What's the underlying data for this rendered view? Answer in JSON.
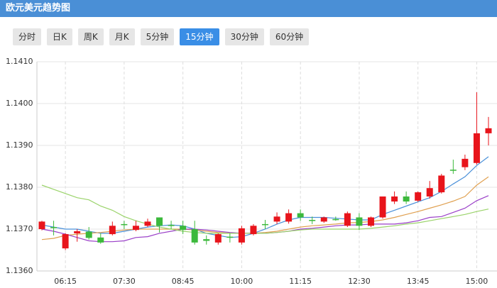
{
  "header": {
    "title": "欧元美元趋势图"
  },
  "tabs": [
    "分时",
    "日K",
    "周K",
    "月K",
    "5分钟",
    "15分钟",
    "30分钟",
    "60分钟"
  ],
  "active_tab": 5,
  "chart_data": {
    "type": "candlestick",
    "categories": [
      null,
      null,
      "06:15",
      null,
      null,
      null,
      null,
      "07:30",
      null,
      null,
      null,
      null,
      "08:45",
      null,
      null,
      null,
      null,
      "10:00",
      null,
      null,
      null,
      null,
      "11:15",
      null,
      null,
      null,
      null,
      "12:30",
      null,
      null,
      null,
      null,
      "13:45",
      null,
      null,
      null,
      null,
      "15:00",
      null
    ],
    "open": [
      1.137,
      1.13705,
      1.13654,
      1.1369,
      1.13694,
      1.1368,
      1.13688,
      1.13712,
      1.13698,
      1.13708,
      1.13728,
      1.1371,
      1.13708,
      1.137,
      1.13676,
      1.13668,
      1.13682,
      1.13668,
      1.13688,
      1.13712,
      1.13718,
      1.13718,
      1.13738,
      1.13722,
      1.13718,
      1.13724,
      1.13708,
      1.13728,
      1.13708,
      1.13728,
      1.13766,
      1.13778,
      1.13768,
      1.13778,
      1.13788,
      1.13842,
      1.13848,
      1.13858,
      1.13929
    ],
    "high": [
      1.1372,
      1.1372,
      1.1369,
      1.137,
      1.13705,
      1.1369,
      1.13718,
      1.1372,
      1.1372,
      1.13725,
      1.13728,
      1.1372,
      1.1372,
      1.1372,
      1.13685,
      1.1369,
      1.1369,
      1.13708,
      1.13712,
      1.13722,
      1.1374,
      1.13747,
      1.13747,
      1.1373,
      1.1373,
      1.1373,
      1.13742,
      1.13738,
      1.1373,
      1.13778,
      1.1379,
      1.1379,
      1.1379,
      1.13815,
      1.13832,
      1.13866,
      1.13878,
      1.14027,
      1.13968
    ],
    "low": [
      1.13697,
      1.13685,
      1.1365,
      1.1367,
      1.13675,
      1.13665,
      1.13685,
      1.137,
      1.13695,
      1.13705,
      1.13692,
      1.137,
      1.13688,
      1.13663,
      1.13663,
      1.13663,
      1.13668,
      1.13663,
      1.13685,
      1.137,
      1.13712,
      1.13713,
      1.1372,
      1.13712,
      1.13715,
      1.1372,
      1.13705,
      1.13698,
      1.13705,
      1.13725,
      1.1376,
      1.1376,
      1.13765,
      1.13773,
      1.13785,
      1.13832,
      1.13841,
      1.13854,
      1.139
    ],
    "close": [
      1.13718,
      1.13703,
      1.13688,
      1.13695,
      1.13679,
      1.13668,
      1.13708,
      1.1371,
      1.13708,
      1.13718,
      1.13708,
      1.13708,
      1.13698,
      1.13668,
      1.13672,
      1.13688,
      1.1368,
      1.13702,
      1.13708,
      1.1371,
      1.1373,
      1.13738,
      1.13728,
      1.1372,
      1.13728,
      1.13722,
      1.13738,
      1.13708,
      1.13728,
      1.13778,
      1.13778,
      1.13766,
      1.13788,
      1.13798,
      1.13828,
      1.1384,
      1.13868,
      1.13929,
      1.13941
    ],
    "up_color": "#e8141b",
    "down_color": "#3cb93c",
    "series": [
      {
        "color": "#4a90d9",
        "values": [
          1.1371,
          1.13705,
          1.137,
          1.137,
          1.13695,
          1.1369,
          1.1369,
          1.13695,
          1.137,
          1.13705,
          1.13708,
          1.1371,
          1.13708,
          1.137,
          1.1369,
          1.13685,
          1.1368,
          1.13682,
          1.1369,
          1.137,
          1.13712,
          1.13722,
          1.13728,
          1.13728,
          1.13728,
          1.13726,
          1.13724,
          1.13722,
          1.13722,
          1.13735,
          1.13745,
          1.13755,
          1.13765,
          1.13775,
          1.1379,
          1.13808,
          1.13825,
          1.13852,
          1.13873
        ]
      },
      {
        "color": "#e0a050",
        "values": [
          1.13675,
          1.13678,
          1.13685,
          1.13688,
          1.1369,
          1.13692,
          1.13695,
          1.13698,
          1.137,
          1.137,
          1.137,
          1.137,
          1.137,
          1.13698,
          1.13695,
          1.13692,
          1.1369,
          1.1369,
          1.1369,
          1.13692,
          1.13695,
          1.137,
          1.13705,
          1.13708,
          1.1371,
          1.13712,
          1.13715,
          1.13716,
          1.13718,
          1.13722,
          1.13728,
          1.13735,
          1.13742,
          1.1375,
          1.13758,
          1.13767,
          1.13778,
          1.13805,
          1.13825
        ]
      },
      {
        "color": "#9a3fc8",
        "values": [
          1.137,
          1.13695,
          1.13688,
          1.1368,
          1.13672,
          1.1367,
          1.1367,
          1.13672,
          1.1368,
          1.13682,
          1.1369,
          1.13695,
          1.137,
          1.137,
          1.13698,
          1.13695,
          1.13692,
          1.1369,
          1.1369,
          1.1369,
          1.13692,
          1.13695,
          1.137,
          1.13702,
          1.13705,
          1.13708,
          1.1371,
          1.1371,
          1.13712,
          1.13712,
          1.13712,
          1.13715,
          1.1372,
          1.13728,
          1.1373,
          1.1374,
          1.1375,
          1.13768,
          1.1378
        ]
      },
      {
        "color": "#9ad36a",
        "values": [
          1.13805,
          1.13795,
          1.13785,
          1.13775,
          1.1377,
          1.13755,
          1.13745,
          1.1373,
          1.1372,
          1.13712,
          1.13705,
          1.137,
          1.13695,
          1.13692,
          1.1369,
          1.1369,
          1.1369,
          1.1369,
          1.1369,
          1.1369,
          1.13692,
          1.13695,
          1.13698,
          1.137,
          1.137,
          1.137,
          1.137,
          1.137,
          1.13702,
          1.13705,
          1.13708,
          1.13712,
          1.13715,
          1.1372,
          1.13725,
          1.1373,
          1.13735,
          1.13742,
          1.13748
        ]
      }
    ],
    "ylim": [
      1.136,
      1.141
    ],
    "yticks": [
      {
        "value": 1.141,
        "label": "1.1410"
      },
      {
        "value": 1.14,
        "label": "1.1400"
      },
      {
        "value": 1.139,
        "label": "1.1390"
      },
      {
        "value": 1.138,
        "label": "1.1380"
      },
      {
        "value": 1.137,
        "label": "1.1370"
      },
      {
        "value": 1.136,
        "label": "1.1360"
      }
    ],
    "grid": true
  }
}
